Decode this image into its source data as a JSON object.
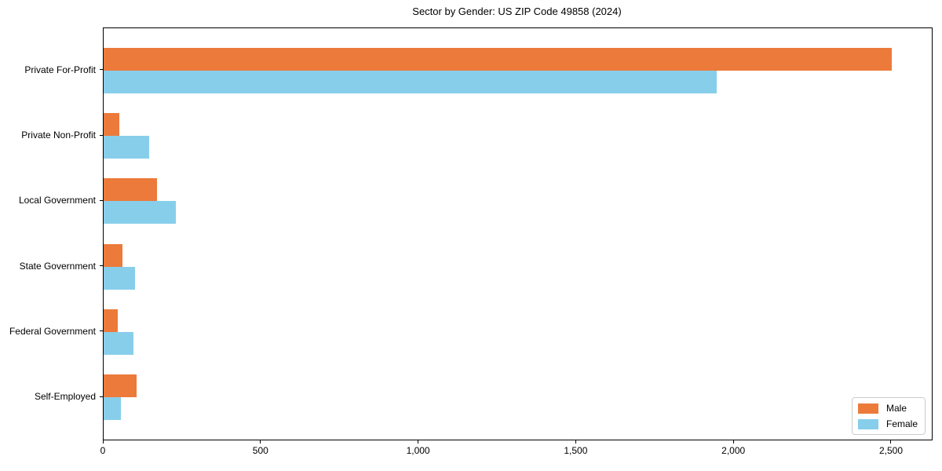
{
  "chart_data": {
    "type": "bar",
    "orientation": "horizontal",
    "title": "Sector by Gender: US ZIP Code 49858 (2024)",
    "categories": [
      "Private For-Profit",
      "Private Non-Profit",
      "Local Government",
      "State Government",
      "Federal Government",
      "Self-Employed"
    ],
    "series": [
      {
        "name": "Male",
        "color": "#EC7A3B",
        "values": [
          2500,
          50,
          170,
          60,
          45,
          105
        ]
      },
      {
        "name": "Female",
        "color": "#87CEEB",
        "values": [
          1945,
          145,
          230,
          100,
          95,
          55
        ]
      }
    ],
    "xlabel": "",
    "ylabel": "",
    "x_ticks": {
      "values": [
        0,
        500,
        1000,
        1500,
        2000,
        2500
      ],
      "labels": [
        "0",
        "500",
        "1,000",
        "1,500",
        "2,000",
        "2,500"
      ]
    },
    "xlim": [
      0,
      2627
    ],
    "grid": false,
    "legend_position": "lower right",
    "axis_color": "#000000",
    "background_color": "#ffffff"
  }
}
